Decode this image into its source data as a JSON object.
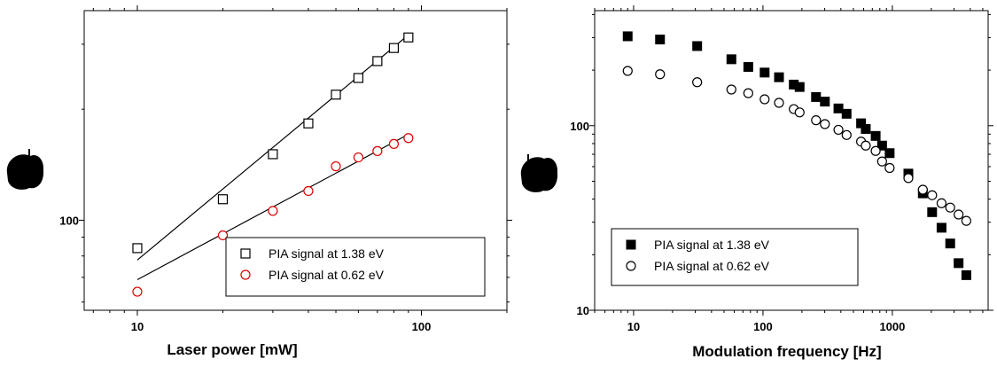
{
  "colors": {
    "black": "#000000",
    "red": "#e00000"
  },
  "chart_data": [
    {
      "type": "scatter",
      "xlabel": "Laser power [mW]",
      "ylabel": "",
      "xscale": "log",
      "yscale": "log",
      "xlim": [
        6.5,
        200
      ],
      "ylim": [
        57,
        370
      ],
      "x_ticks": [
        {
          "value": 10,
          "label": "10"
        },
        {
          "value": 100,
          "label": "100"
        }
      ],
      "y_ticks": [
        {
          "value": 100,
          "label": "100"
        }
      ],
      "grid": false,
      "legend_position": "bottom-right",
      "series": [
        {
          "name": "PIA signal at 1.38 eV",
          "marker": "open-square",
          "color": "#000000",
          "x": [
            10,
            20,
            30,
            40,
            50,
            60,
            70,
            80,
            90
          ],
          "y": [
            84,
            114,
            151,
            183,
            219,
            243,
            270,
            293,
            313
          ]
        },
        {
          "name": "PIA signal at 0.62 eV",
          "marker": "open-circle",
          "color": "#e00000",
          "x": [
            10,
            20,
            30,
            40,
            50,
            60,
            70,
            80,
            90
          ],
          "y": [
            64,
            91,
            106,
            120,
            140,
            148,
            154,
            161,
            167
          ]
        }
      ],
      "fit_lines": [
        {
          "color": "#000000",
          "x": [
            10,
            90
          ],
          "y": [
            78,
            318
          ]
        },
        {
          "color": "#000000",
          "x": [
            10,
            90
          ],
          "y": [
            69,
            171
          ]
        }
      ]
    },
    {
      "type": "scatter",
      "xlabel": "Modulation frequency [Hz]",
      "ylabel": "",
      "xscale": "log",
      "yscale": "log",
      "xlim": [
        5,
        5500
      ],
      "ylim": [
        10,
        420
      ],
      "x_ticks": [
        {
          "value": 10,
          "label": "10"
        },
        {
          "value": 100,
          "label": "100"
        },
        {
          "value": 1000,
          "label": "1000"
        }
      ],
      "y_ticks": [
        {
          "value": 10,
          "label": "10"
        },
        {
          "value": 100,
          "label": "100"
        }
      ],
      "grid": false,
      "legend_position": "bottom-left",
      "series": [
        {
          "name": "PIA signal at 1.38 eV",
          "marker": "filled-square",
          "color": "#000000",
          "x": [
            9,
            16,
            31,
            57,
            77,
            103,
            133,
            173,
            192,
            257,
            301,
            383,
            443,
            573,
            623,
            743,
            833,
            953,
            1330,
            1720,
            2030,
            2400,
            2800,
            3250,
            3730
          ],
          "y": [
            305,
            293,
            270,
            229,
            208,
            194,
            183,
            167,
            162,
            143,
            135,
            124,
            116,
            103,
            96,
            88,
            78,
            71,
            55,
            43,
            34,
            28,
            23,
            18,
            15.5
          ]
        },
        {
          "name": "PIA signal at 0.62 eV",
          "marker": "open-circle",
          "color": "#000000",
          "x": [
            9,
            16,
            31,
            57,
            77,
            103,
            133,
            173,
            192,
            257,
            301,
            383,
            443,
            573,
            623,
            743,
            833,
            953,
            1330,
            1720,
            2030,
            2400,
            2800,
            3250,
            3730
          ],
          "y": [
            198,
            190,
            172,
            157,
            150,
            139,
            133,
            123,
            118,
            107,
            102,
            95,
            89,
            82,
            78,
            73,
            64,
            59,
            52,
            45,
            42,
            38,
            36,
            33,
            30.5
          ]
        }
      ]
    }
  ]
}
